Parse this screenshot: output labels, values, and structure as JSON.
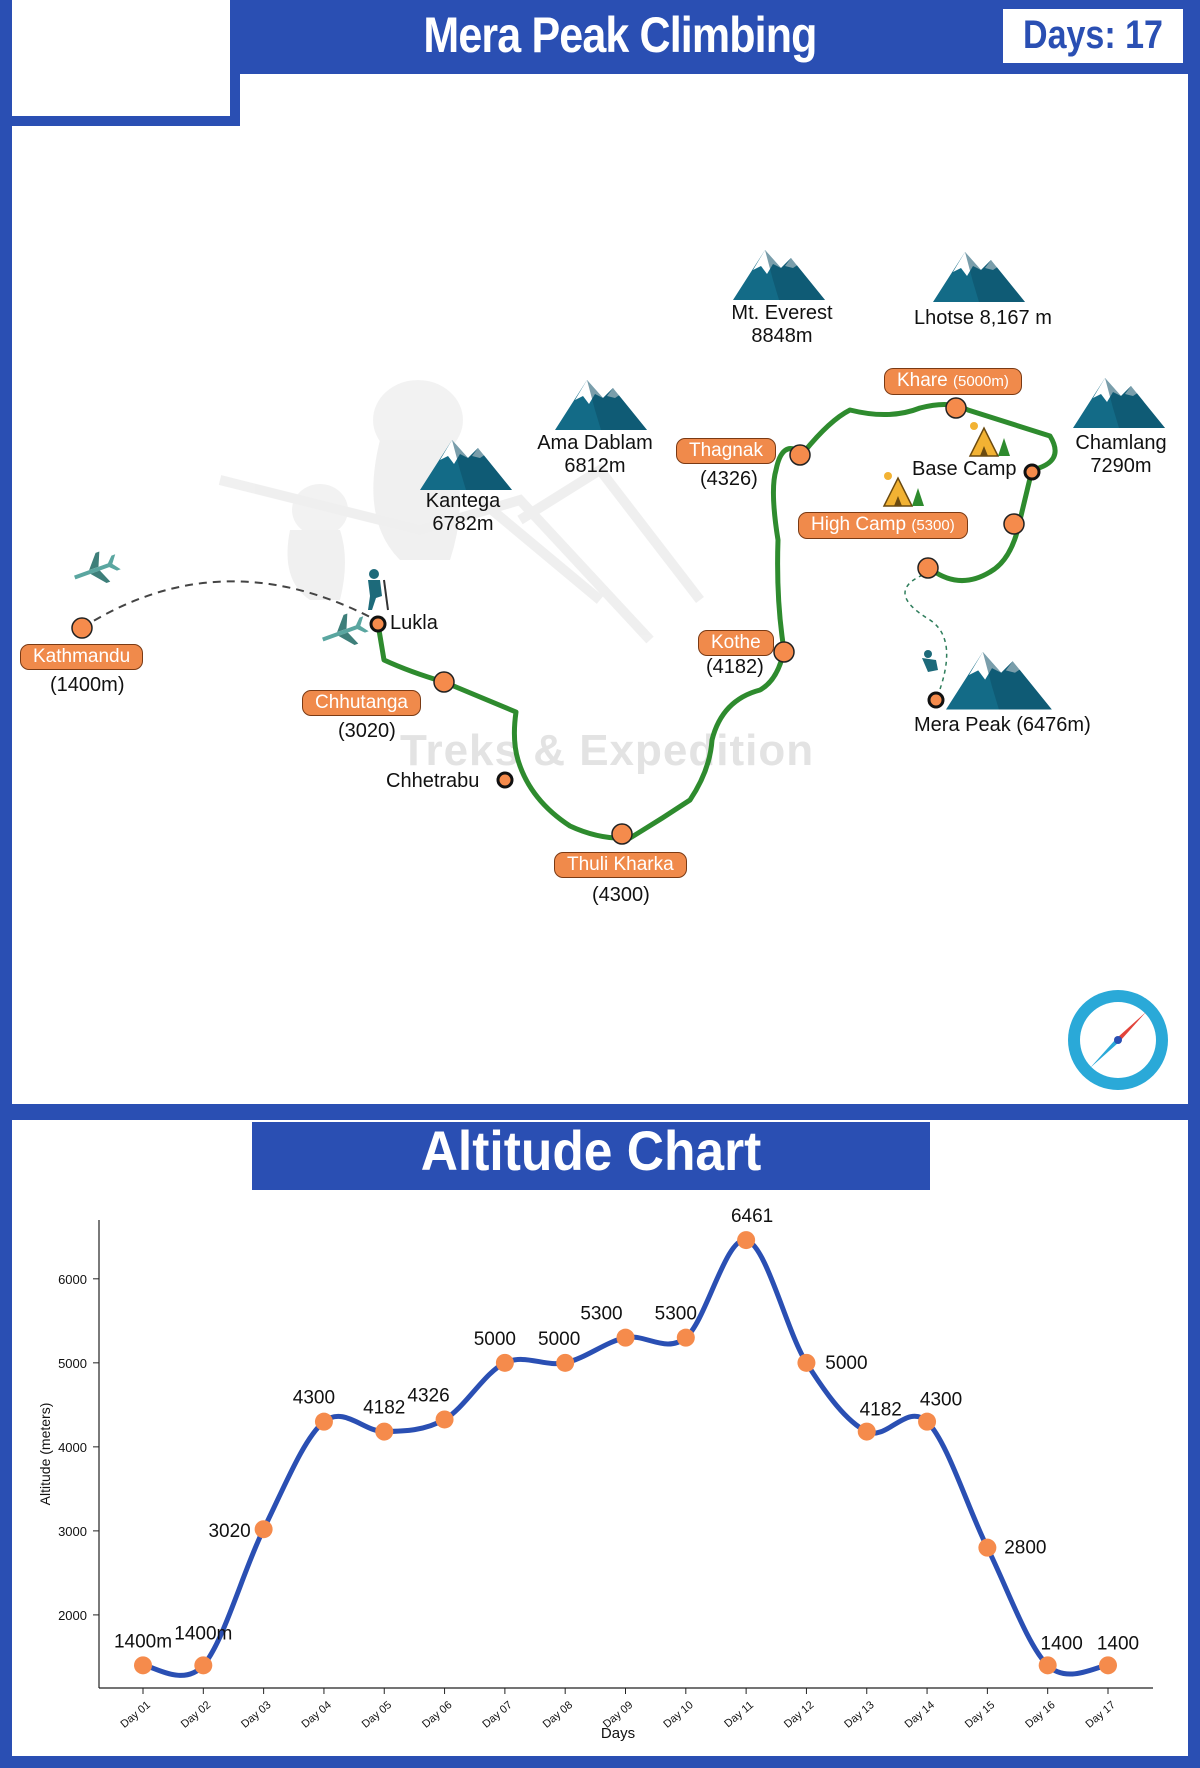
{
  "header": {
    "title": "Mera Peak Climbing",
    "days": "Days: 17"
  },
  "map": {
    "watermark": "Treks & Expedition",
    "mountains": [
      {
        "id": "everest",
        "name": "Mt. Everest",
        "alt": "8848m"
      },
      {
        "id": "lhotse",
        "name": "Lhotse 8,167 m"
      },
      {
        "id": "amadablam",
        "name": "Ama Dablam",
        "alt": "6812m"
      },
      {
        "id": "kantega",
        "name": "Kantega",
        "alt": "6782m"
      },
      {
        "id": "chamlang",
        "name": "Chamlang",
        "alt": "7290m"
      },
      {
        "id": "mera",
        "name": "Mera Peak (6476m)"
      }
    ],
    "places": {
      "kathmandu": {
        "name": "Kathmandu",
        "alt": "(1400m)"
      },
      "lukla": {
        "name": "Lukla"
      },
      "chhutanga": {
        "name": "Chhutanga",
        "alt": "(3020)"
      },
      "chhetrabu": {
        "name": "Chhetrabu"
      },
      "thuli_kharka": {
        "name": "Thuli Kharka",
        "alt": "(4300)"
      },
      "kothe": {
        "name": "Kothe",
        "alt": "(4182)"
      },
      "thagnak": {
        "name": "Thagnak",
        "alt": "(4326)"
      },
      "khare": {
        "name": "Khare",
        "alt": "(5000m)"
      },
      "base_camp": {
        "name": "Base Camp"
      },
      "high_camp": {
        "name": "High Camp",
        "alt": "(5300)"
      }
    }
  },
  "chart_data": {
    "type": "line",
    "title": "Altitude Chart",
    "xlabel": "Days",
    "ylabel": "Altitude (meters)",
    "categories": [
      "Day 01",
      "Day 02",
      "Day 03",
      "Day 04",
      "Day 05",
      "Day 06",
      "Day 07",
      "Day 08",
      "Day 09",
      "Day 10",
      "Day 11",
      "Day 12",
      "Day 13",
      "Day 14",
      "Day 15",
      "Day 16",
      "Day 17"
    ],
    "values": [
      1400,
      1400,
      3020,
      4300,
      4182,
      4326,
      5000,
      5000,
      5300,
      5300,
      6461,
      5000,
      4182,
      4300,
      2800,
      1400,
      1400
    ],
    "point_labels": [
      "1400m",
      "1400m",
      "3020",
      "4300",
      "4182",
      "4326",
      "5000",
      "5000",
      "5300",
      "5300",
      "6461",
      "5000",
      "4182",
      "4300",
      "2800",
      "1400",
      "1400"
    ],
    "yticks": [
      2000,
      3000,
      4000,
      5000,
      6000
    ],
    "ylim": [
      1130,
      6700
    ],
    "line_color": "#2a4fb3",
    "marker_color": "#f58b4c",
    "grid": false
  },
  "colors": {
    "brand": "#2a4fb3",
    "accent": "#f08a4b",
    "route": "#2e8b2e"
  }
}
